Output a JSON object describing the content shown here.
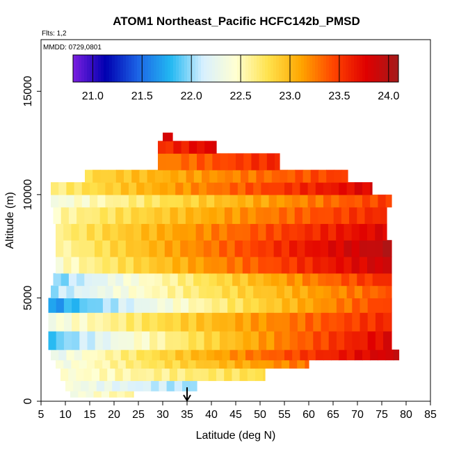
{
  "chart_data": {
    "type": "heatmap",
    "title": "ATOM1 Northeast_Pacific HCFC142b_PMSD",
    "flights_note": "Flts: 1,2",
    "dates_note": "MMDD: 0729,0801",
    "xlabel": "Latitude (deg N)",
    "ylabel": "Altitude (m)",
    "xlim": [
      5,
      85
    ],
    "ylim": [
      0,
      17500
    ],
    "x_ticks": [
      "5",
      "10",
      "15",
      "20",
      "25",
      "30",
      "35",
      "40",
      "45",
      "50",
      "55",
      "60",
      "65",
      "70",
      "75",
      "80",
      "85"
    ],
    "y_ticks": [
      "0",
      "5000",
      "10000",
      "15000"
    ],
    "colorbar": {
      "range": [
        20.8,
        24.1
      ],
      "ticks": [
        "21.0",
        "21.5",
        "22.0",
        "22.5",
        "23.0",
        "23.5",
        "24.0"
      ],
      "colors": [
        "#7B1FE0",
        "#0000B0",
        "#1C64E6",
        "#22B8F2",
        "#D8F0FF",
        "#FFFFD2",
        "#FFE24C",
        "#FFA600",
        "#FF4500",
        "#E00000",
        "#A31A1A"
      ]
    },
    "bands": [
      {
        "alt": [
          200,
          650
        ],
        "lat": [
          11,
          24
        ],
        "start": 22.3,
        "end": 22.6,
        "note": "bottom strip"
      },
      {
        "alt": [
          500,
          1000
        ],
        "lat": [
          10,
          37
        ],
        "start": 22.4,
        "end": 22.0
      },
      {
        "alt": [
          1000,
          1600
        ],
        "lat": [
          9,
          51
        ],
        "start": 22.4,
        "end": 22.8
      },
      {
        "alt": [
          1600,
          2000
        ],
        "lat": [
          8,
          60
        ],
        "start": 22.3,
        "end": 23.3
      },
      {
        "alt": [
          2000,
          2500
        ],
        "lat": [
          7,
          78.5
        ],
        "start": 22.2,
        "end": 23.9
      },
      {
        "alt": [
          2500,
          3400
        ],
        "lat": [
          6.5,
          77
        ],
        "start": 21.8,
        "end": 23.8
      },
      {
        "alt": [
          3400,
          4300
        ],
        "lat": [
          6.5,
          77
        ],
        "start": 22.3,
        "end": 23.6
      },
      {
        "alt": [
          4300,
          5000
        ],
        "lat": [
          6.5,
          77
        ],
        "start": 21.6,
        "end": 23.5
      },
      {
        "alt": [
          5000,
          5600
        ],
        "lat": [
          7,
          77
        ],
        "start": 22.0,
        "end": 23.4
      },
      {
        "alt": [
          5600,
          6200
        ],
        "lat": [
          7.5,
          77
        ],
        "start": 21.9,
        "end": 23.6
      },
      {
        "alt": [
          6200,
          7000
        ],
        "lat": [
          8,
          77
        ],
        "start": 22.4,
        "end": 23.9
      },
      {
        "alt": [
          7000,
          7800
        ],
        "lat": [
          8,
          77
        ],
        "start": 22.5,
        "end": 24.0
      },
      {
        "alt": [
          7800,
          8600
        ],
        "lat": [
          8,
          76
        ],
        "start": 22.6,
        "end": 23.8
      },
      {
        "alt": [
          8600,
          9400
        ],
        "lat": [
          7.5,
          76
        ],
        "start": 22.5,
        "end": 23.6
      },
      {
        "alt": [
          9400,
          10000
        ],
        "lat": [
          7,
          77
        ],
        "start": 22.3,
        "end": 23.5
      },
      {
        "alt": [
          10000,
          10600
        ],
        "lat": [
          7,
          73
        ],
        "start": 22.6,
        "end": 23.8
      },
      {
        "alt": [
          10600,
          11200
        ],
        "lat": [
          14,
          68
        ],
        "start": 22.8,
        "end": 23.5
      },
      {
        "alt": [
          11200,
          12000
        ],
        "lat": [
          29,
          54
        ],
        "start": 23.2,
        "end": 23.6
      },
      {
        "alt": [
          12000,
          12600
        ],
        "lat": [
          29,
          41
        ],
        "start": 23.5,
        "end": 23.8
      },
      {
        "alt": [
          12600,
          13000
        ],
        "lat": [
          30,
          32
        ],
        "start": 23.8,
        "end": 23.8
      }
    ],
    "marker": {
      "lat": 35,
      "note": "downward arrow below plot"
    }
  }
}
